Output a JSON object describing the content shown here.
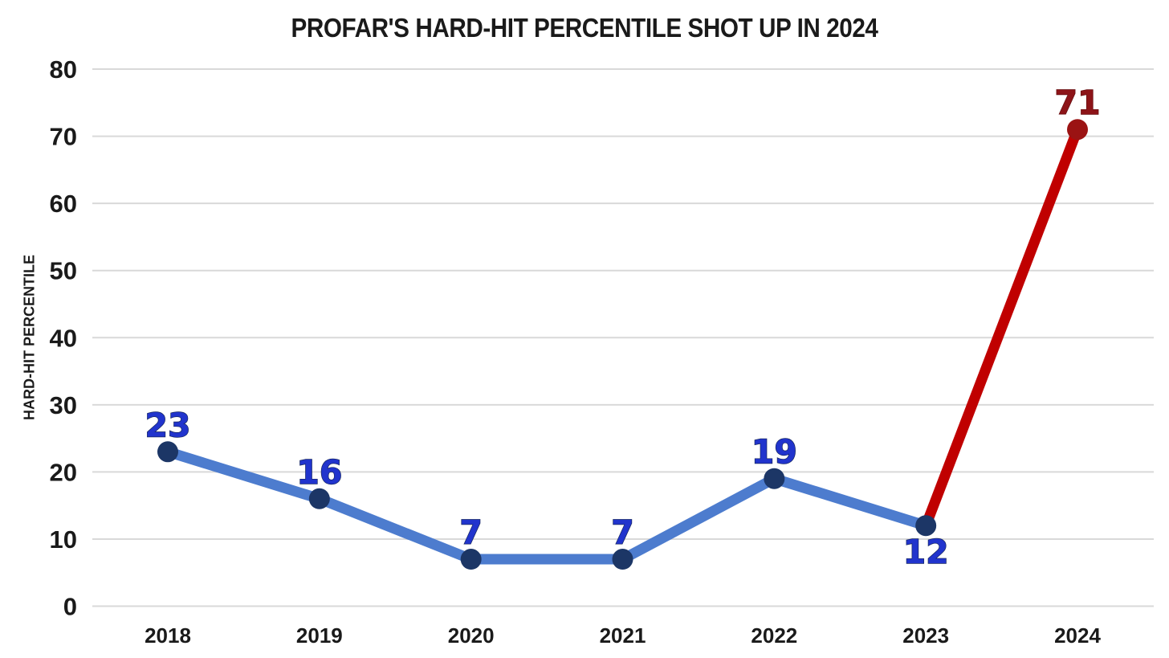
{
  "page": {
    "background": "#ffffff"
  },
  "chart_data": {
    "type": "line",
    "title": "PROFAR'S HARD-HIT PERCENTILE SHOT UP IN 2024",
    "ylabel": "HARD-HIT PERCENTILE",
    "xlabel": "",
    "categories": [
      "2018",
      "2019",
      "2020",
      "2021",
      "2022",
      "2023",
      "2024"
    ],
    "values": [
      23,
      16,
      7,
      7,
      19,
      12,
      71
    ],
    "ylim": [
      0,
      80
    ],
    "yticks": [
      0,
      10,
      20,
      30,
      40,
      50,
      60,
      70,
      80
    ],
    "grid": true,
    "legend": "none",
    "label_positions": [
      "above",
      "above",
      "above",
      "above",
      "above",
      "below",
      "above"
    ],
    "series": [
      {
        "name": "2018-2023 (blue segment)",
        "start_index": 0,
        "end_index": 5,
        "line_color": "#4d7cce",
        "marker_color": "#1c3666",
        "label_color": "#2134cd",
        "label_outline_color": "#16265e"
      },
      {
        "name": "2023-2024 (red segment)",
        "start_index": 5,
        "end_index": 6,
        "line_color": "#c00000",
        "marker_color": "#9b1313",
        "label_color": "#8d1418",
        "label_outline_color": "#640d10"
      }
    ],
    "colors": {
      "gridline": "#d9d9d9",
      "axis_text": "#1a1a1a",
      "title_text": "#1a1a1a"
    }
  }
}
